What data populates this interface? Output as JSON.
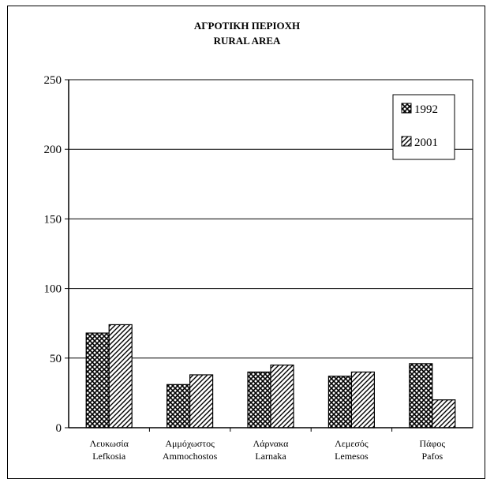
{
  "chart_data": {
    "type": "bar",
    "title": "ΑΓΡΟΤΙΚΗ ΠΕΡΙΟΧΗ",
    "subtitle": "RURAL AREA",
    "categories": [
      [
        "Λευκωσία",
        "Lefkosia"
      ],
      [
        "Αμμόχωστος",
        "Ammochostos"
      ],
      [
        "Λάρνακα",
        "Larnaka"
      ],
      [
        "Λεμεσός",
        "Lemesos"
      ],
      [
        "Πάφος",
        "Pafos"
      ]
    ],
    "series": [
      {
        "name": "1992",
        "values": [
          68,
          31,
          40,
          37,
          46
        ],
        "pattern": "crosshatch"
      },
      {
        "name": "2001",
        "values": [
          74,
          38,
          45,
          40,
          20
        ],
        "pattern": "diagonal"
      }
    ],
    "ylim": [
      0,
      250
    ],
    "yticks": [
      0,
      50,
      100,
      150,
      200,
      250
    ],
    "grid": true,
    "legend_position": "top-right"
  }
}
